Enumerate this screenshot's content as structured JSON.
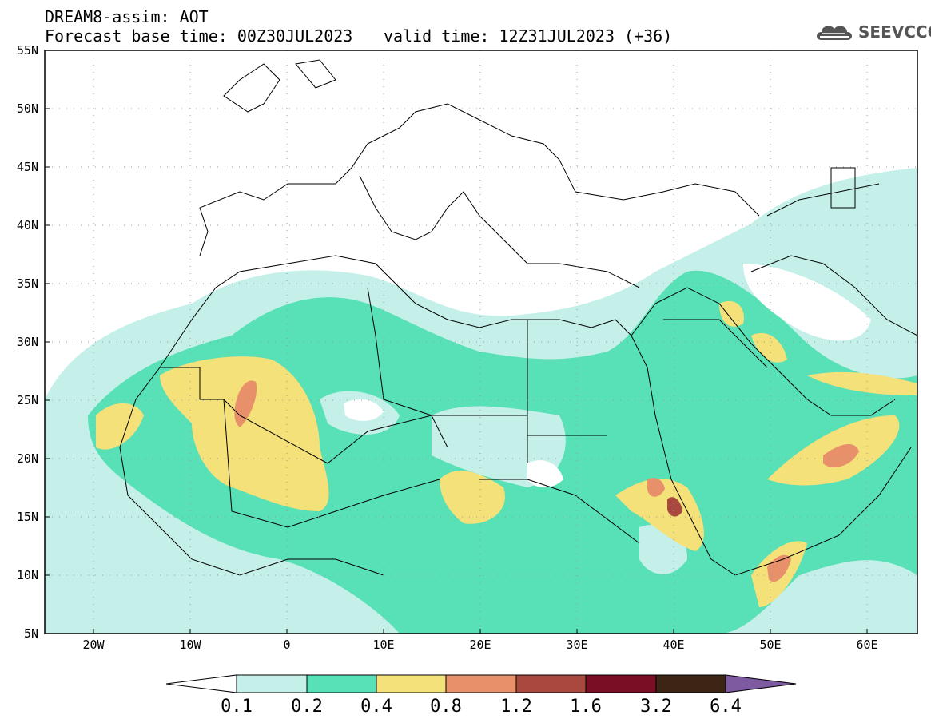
{
  "header": {
    "line1": "DREAM8-assim: AOT",
    "line2": "Forecast base time: 00Z30JUL2023",
    "valid": "valid time: 12Z31JUL2023 (+36)",
    "logo_text": "SEEVCCC"
  },
  "axes": {
    "lat_labels": [
      "55N",
      "50N",
      "45N",
      "40N",
      "35N",
      "30N",
      "25N",
      "20N",
      "15N",
      "10N",
      "5N"
    ],
    "lon_labels": [
      "20W",
      "10W",
      "0",
      "10E",
      "20E",
      "30E",
      "40E",
      "50E",
      "60E"
    ]
  },
  "colorbar": {
    "labels": [
      "0.1",
      "0.2",
      "0.4",
      "0.8",
      "1.2",
      "1.6",
      "3.2",
      "6.4"
    ],
    "colors": [
      "#c4f0e9",
      "#58e0b6",
      "#f4e17a",
      "#e8906a",
      "#a9483e",
      "#7a0e24",
      "#3c2515",
      "#7e5aa0"
    ],
    "low_end_color": "#ffffff"
  },
  "colors": {
    "frame": "#000000",
    "land_line": "#000000"
  }
}
